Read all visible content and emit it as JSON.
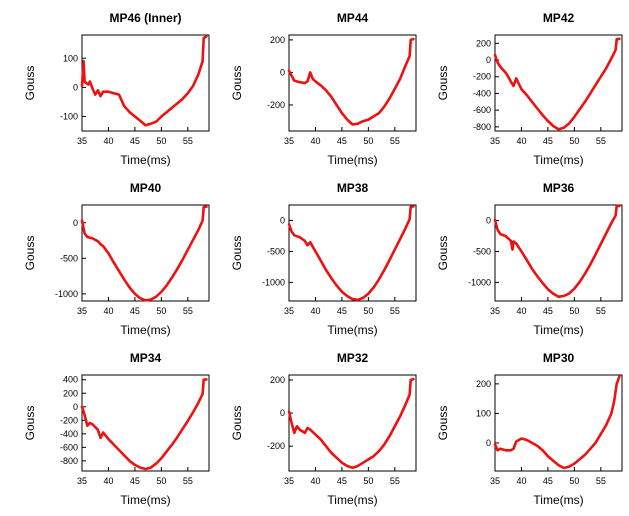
{
  "chart_data": [
    {
      "type": "line",
      "title": "MP46 (Inner)",
      "xlabel": "Time(ms)",
      "ylabel": "Gouss",
      "xlim": [
        35,
        59
      ],
      "ylim": [
        -150,
        180
      ],
      "xticks": [
        35,
        40,
        45,
        50,
        55
      ],
      "yticks": [
        100,
        0,
        -100
      ],
      "x": [
        35,
        35.3,
        35.5,
        35.8,
        36.2,
        36.5,
        37,
        37.5,
        38,
        38.5,
        39,
        40,
        41,
        42,
        43,
        44,
        45,
        46,
        47,
        48,
        49,
        50,
        51,
        52,
        53,
        54,
        55,
        56,
        57,
        57.8,
        58,
        58.5
      ],
      "y": [
        5,
        90,
        20,
        15,
        10,
        20,
        -5,
        -25,
        -10,
        -30,
        -15,
        -15,
        -20,
        -25,
        -65,
        -85,
        -100,
        -115,
        -130,
        -125,
        -118,
        -100,
        -85,
        -70,
        -55,
        -40,
        -20,
        5,
        45,
        90,
        170,
        175
      ]
    },
    {
      "type": "line",
      "title": "MP44",
      "xlabel": "Time(ms)",
      "ylabel": "Gouss",
      "xlim": [
        35,
        59
      ],
      "ylim": [
        -360,
        230
      ],
      "xticks": [
        35,
        40,
        45,
        50,
        55
      ],
      "yticks": [
        200,
        0,
        -200
      ],
      "x": [
        35,
        35.5,
        36,
        37,
        38,
        38.5,
        39,
        39.5,
        40,
        41,
        42,
        43,
        44,
        45,
        46,
        47,
        48,
        49,
        50,
        51,
        52,
        53,
        54,
        55,
        56,
        57,
        57.8,
        58,
        58.5
      ],
      "y": [
        10,
        -20,
        -50,
        -60,
        -65,
        -55,
        0,
        -40,
        -55,
        -80,
        -110,
        -150,
        -200,
        -250,
        -290,
        -320,
        -315,
        -300,
        -290,
        -270,
        -250,
        -210,
        -160,
        -100,
        -40,
        40,
        100,
        200,
        205
      ]
    },
    {
      "type": "line",
      "title": "MP42",
      "xlabel": "Time(ms)",
      "ylabel": "Gouss",
      "xlim": [
        35,
        59
      ],
      "ylim": [
        -850,
        300
      ],
      "xticks": [
        35,
        40,
        45,
        50,
        55
      ],
      "yticks": [
        200,
        0,
        -200,
        -400,
        -600,
        -800
      ],
      "x": [
        35,
        35.5,
        36,
        37,
        37.5,
        38,
        38.5,
        39,
        40,
        41,
        42,
        43,
        44,
        45,
        46,
        47,
        48,
        49,
        50,
        51,
        52,
        53,
        54,
        55,
        56,
        57,
        57.8,
        58,
        58.5
      ],
      "y": [
        60,
        -30,
        -80,
        -150,
        -200,
        -260,
        -310,
        -220,
        -350,
        -420,
        -500,
        -580,
        -660,
        -730,
        -790,
        -830,
        -810,
        -760,
        -680,
        -590,
        -500,
        -400,
        -300,
        -200,
        -100,
        20,
        120,
        250,
        255
      ]
    },
    {
      "type": "line",
      "title": "MP40",
      "xlabel": "Time(ms)",
      "ylabel": "Gouss",
      "xlim": [
        35,
        59
      ],
      "ylim": [
        -1100,
        250
      ],
      "xticks": [
        35,
        40,
        45,
        50,
        55
      ],
      "yticks": [
        0,
        -500,
        -1000
      ],
      "x": [
        35,
        35.5,
        36,
        37,
        38,
        38.5,
        39,
        40,
        41,
        42,
        43,
        44,
        45,
        46,
        47,
        48,
        49,
        50,
        51,
        52,
        53,
        54,
        55,
        56,
        57,
        57.8,
        58,
        58.5
      ],
      "y": [
        30,
        -150,
        -200,
        -220,
        -260,
        -300,
        -330,
        -430,
        -560,
        -680,
        -800,
        -910,
        -1000,
        -1060,
        -1090,
        -1080,
        -1040,
        -970,
        -880,
        -770,
        -650,
        -520,
        -380,
        -240,
        -100,
        30,
        220,
        225
      ]
    },
    {
      "type": "line",
      "title": "MP38",
      "xlabel": "Time(ms)",
      "ylabel": "Gouss",
      "xlim": [
        35,
        59
      ],
      "ylim": [
        -1300,
        250
      ],
      "xticks": [
        35,
        40,
        45,
        50,
        55
      ],
      "yticks": [
        0,
        -500,
        -1000
      ],
      "x": [
        35,
        35.5,
        36,
        37,
        38,
        38.5,
        39,
        40,
        41,
        42,
        43,
        44,
        45,
        46,
        47,
        48,
        49,
        50,
        51,
        52,
        53,
        54,
        55,
        56,
        57,
        57.8,
        58,
        58.5
      ],
      "y": [
        -60,
        -180,
        -240,
        -270,
        -330,
        -400,
        -350,
        -500,
        -650,
        -800,
        -930,
        -1050,
        -1150,
        -1220,
        -1270,
        -1280,
        -1250,
        -1180,
        -1080,
        -950,
        -800,
        -640,
        -470,
        -300,
        -130,
        20,
        220,
        225
      ]
    },
    {
      "type": "line",
      "title": "MP36",
      "xlabel": "Time(ms)",
      "ylabel": "Gouss",
      "xlim": [
        35,
        59
      ],
      "ylim": [
        -1300,
        250
      ],
      "xticks": [
        35,
        40,
        45,
        50,
        55
      ],
      "yticks": [
        0,
        -500,
        -1000
      ],
      "x": [
        35,
        35.5,
        36,
        37,
        38,
        38.3,
        38.5,
        39,
        40,
        41,
        42,
        43,
        44,
        45,
        46,
        47,
        48,
        49,
        50,
        51,
        52,
        53,
        54,
        55,
        56,
        57,
        57.8,
        58,
        58.5
      ],
      "y": [
        10,
        -150,
        -220,
        -250,
        -330,
        -470,
        -340,
        -370,
        -500,
        -640,
        -780,
        -900,
        -1010,
        -1110,
        -1180,
        -1230,
        -1220,
        -1180,
        -1100,
        -990,
        -860,
        -710,
        -550,
        -380,
        -210,
        -40,
        80,
        230,
        235
      ]
    },
    {
      "type": "line",
      "title": "MP34",
      "xlabel": "Time(ms)",
      "ylabel": "Gouss",
      "xlim": [
        35,
        59
      ],
      "ylim": [
        -950,
        470
      ],
      "xticks": [
        35,
        40,
        45,
        50,
        55
      ],
      "yticks": [
        400,
        200,
        0,
        -200,
        -400,
        -600,
        -800
      ],
      "x": [
        35,
        35.5,
        36,
        36.5,
        37,
        38,
        38.5,
        39,
        39.5,
        40,
        41,
        42,
        43,
        44,
        45,
        46,
        47,
        48,
        49,
        50,
        51,
        52,
        53,
        54,
        55,
        56,
        57,
        57.8,
        58,
        58.5
      ],
      "y": [
        0,
        -120,
        -280,
        -240,
        -260,
        -340,
        -460,
        -380,
        -430,
        -480,
        -560,
        -640,
        -720,
        -800,
        -860,
        -900,
        -920,
        -900,
        -840,
        -760,
        -660,
        -560,
        -450,
        -330,
        -210,
        -80,
        60,
        190,
        400,
        405
      ]
    },
    {
      "type": "line",
      "title": "MP32",
      "xlabel": "Time(ms)",
      "ylabel": "Gouss",
      "xlim": [
        35,
        59
      ],
      "ylim": [
        -350,
        230
      ],
      "xticks": [
        35,
        40,
        45,
        50,
        55
      ],
      "yticks": [
        200,
        0,
        -200
      ],
      "x": [
        35,
        35.5,
        36,
        36.5,
        37,
        38,
        38.5,
        39,
        40,
        41,
        42,
        43,
        44,
        45,
        46,
        47,
        48,
        49,
        50,
        51,
        52,
        53,
        54,
        55,
        56,
        57,
        57.8,
        58,
        58.5
      ],
      "y": [
        10,
        -60,
        -120,
        -80,
        -100,
        -120,
        -90,
        -100,
        -130,
        -160,
        -200,
        -240,
        -270,
        -300,
        -320,
        -330,
        -320,
        -300,
        -280,
        -260,
        -230,
        -190,
        -140,
        -80,
        -20,
        50,
        110,
        200,
        205
      ]
    },
    {
      "type": "line",
      "title": "MP30",
      "xlabel": "Time(ms)",
      "ylabel": "Gouss",
      "xlim": [
        35,
        59
      ],
      "ylim": [
        -95,
        230
      ],
      "xticks": [
        35,
        40,
        45,
        50,
        55
      ],
      "yticks": [
        200,
        100,
        0
      ],
      "x": [
        35,
        35.5,
        36,
        37,
        38,
        38.5,
        39,
        40,
        41,
        42,
        43,
        44,
        45,
        46,
        47,
        48,
        49,
        50,
        51,
        52,
        53,
        54,
        55,
        56,
        57,
        57.5,
        58,
        58.5
      ],
      "y": [
        -5,
        -25,
        -20,
        -25,
        -25,
        -20,
        5,
        15,
        10,
        0,
        -10,
        -25,
        -45,
        -60,
        -75,
        -85,
        -80,
        -70,
        -55,
        -40,
        -20,
        0,
        30,
        60,
        100,
        140,
        200,
        225
      ]
    }
  ]
}
